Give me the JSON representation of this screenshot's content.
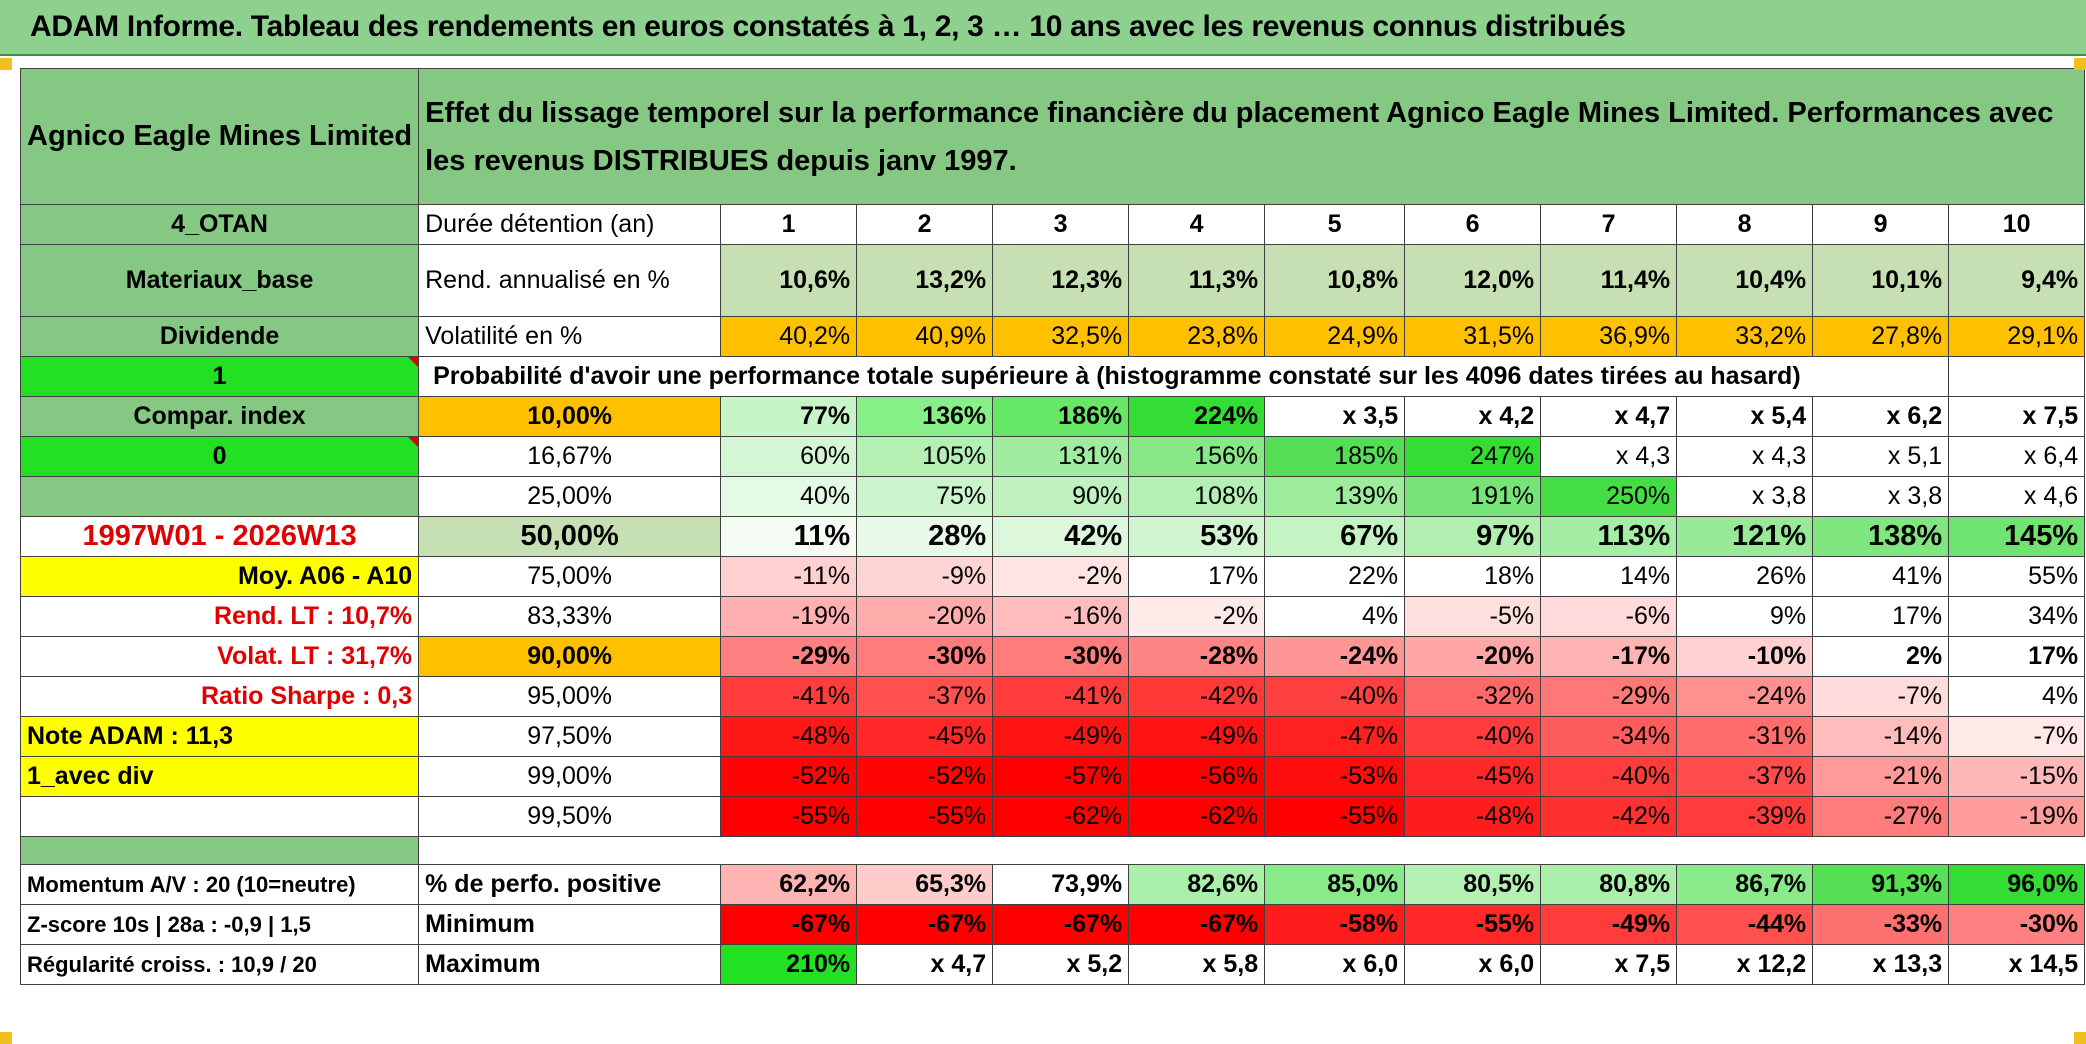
{
  "banner": "ADAM Informe. Tableau des rendements en euros constatés à 1, 2, 3 … 10 ans avec les revenus connus distribués",
  "header": {
    "instrument": "Agnico Eagle Mines Limited",
    "description": "Effet du lissage temporel sur la performance financière du placement Agnico Eagle Mines Limited. Performances avec les revenus DISTRIBUES depuis janv 1997."
  },
  "left": {
    "code": "4_OTAN",
    "sector": "Materiaux_base",
    "dividend": "Dividende",
    "one": "1",
    "compar": "Compar. index",
    "zero": "0",
    "period": "1997W01 - 2026W13",
    "moy": "Moy. A06 - A10",
    "rend_lt": "Rend. LT :    10,7%",
    "volat_lt": "Volat. LT :    31,7%",
    "sharpe": "Ratio Sharpe :    0,3",
    "note": "Note ADAM : 11,3",
    "avec_div": "1_avec div",
    "momentum": "Momentum A/V : 20 (10=neutre)",
    "zscore": "Z-score 10s | 28a : -0,9 | 1,5",
    "regularite": "Régularité croiss. : 10,9 / 20"
  },
  "labels": {
    "duree": "Durée détention (an)",
    "rend": "Rend. annualisé en %",
    "vol": "Volatilité en %",
    "prob": "Probabilité d'avoir une performance totale supérieure à (histogramme constaté sur les 4096 dates tirées au hasard)",
    "perf_pos": "% de perfo. positive",
    "minimum": "Minimum",
    "maximum": "Maximum"
  },
  "years": [
    "1",
    "2",
    "3",
    "4",
    "5",
    "6",
    "7",
    "8",
    "9",
    "10"
  ],
  "rend": [
    "10,6%",
    "13,2%",
    "12,3%",
    "11,3%",
    "10,8%",
    "12,0%",
    "11,4%",
    "10,4%",
    "10,1%",
    "9,4%"
  ],
  "vol": [
    "40,2%",
    "40,9%",
    "32,5%",
    "23,8%",
    "24,9%",
    "31,5%",
    "36,9%",
    "33,2%",
    "27,8%",
    "29,1%"
  ],
  "quantiles": [
    {
      "q": "10,00%",
      "vals": [
        "77%",
        "136%",
        "186%",
        "224%",
        "x 3,5",
        "x 4,2",
        "x 4,7",
        "x 5,4",
        "x 6,2",
        "x 7,5"
      ],
      "bold": true
    },
    {
      "q": "16,67%",
      "vals": [
        "60%",
        "105%",
        "131%",
        "156%",
        "185%",
        "247%",
        "x 4,3",
        "x 4,3",
        "x 5,1",
        "x 6,4"
      ]
    },
    {
      "q": "25,00%",
      "vals": [
        "40%",
        "75%",
        "90%",
        "108%",
        "139%",
        "191%",
        "250%",
        "x 3,8",
        "x 3,8",
        "x 4,6"
      ]
    },
    {
      "q": "50,00%",
      "vals": [
        "11%",
        "28%",
        "42%",
        "53%",
        "67%",
        "97%",
        "113%",
        "121%",
        "138%",
        "145%"
      ],
      "bold": true,
      "big": true
    },
    {
      "q": "75,00%",
      "vals": [
        "-11%",
        "-9%",
        "-2%",
        "17%",
        "22%",
        "18%",
        "14%",
        "26%",
        "41%",
        "55%"
      ]
    },
    {
      "q": "83,33%",
      "vals": [
        "-19%",
        "-20%",
        "-16%",
        "-2%",
        "4%",
        "-5%",
        "-6%",
        "9%",
        "17%",
        "34%"
      ]
    },
    {
      "q": "90,00%",
      "vals": [
        "-29%",
        "-30%",
        "-30%",
        "-28%",
        "-24%",
        "-20%",
        "-17%",
        "-10%",
        "2%",
        "17%"
      ],
      "bold": true
    },
    {
      "q": "95,00%",
      "vals": [
        "-41%",
        "-37%",
        "-41%",
        "-42%",
        "-40%",
        "-32%",
        "-29%",
        "-24%",
        "-7%",
        "4%"
      ]
    },
    {
      "q": "97,50%",
      "vals": [
        "-48%",
        "-45%",
        "-49%",
        "-49%",
        "-47%",
        "-40%",
        "-34%",
        "-31%",
        "-14%",
        "-7%"
      ]
    },
    {
      "q": "99,00%",
      "vals": [
        "-52%",
        "-52%",
        "-57%",
        "-56%",
        "-53%",
        "-45%",
        "-40%",
        "-37%",
        "-21%",
        "-15%"
      ]
    },
    {
      "q": "99,50%",
      "vals": [
        "-55%",
        "-55%",
        "-62%",
        "-62%",
        "-55%",
        "-48%",
        "-42%",
        "-39%",
        "-27%",
        "-19%"
      ]
    }
  ],
  "perf_pos": [
    "62,2%",
    "65,3%",
    "73,9%",
    "82,6%",
    "85,0%",
    "80,5%",
    "80,8%",
    "86,7%",
    "91,3%",
    "96,0%"
  ],
  "minimum": [
    "-67%",
    "-67%",
    "-67%",
    "-67%",
    "-58%",
    "-55%",
    "-49%",
    "-44%",
    "-33%",
    "-30%"
  ],
  "maximum": [
    "210%",
    "x 4,7",
    "x 5,2",
    "x 5,8",
    "x 6,0",
    "x 6,0",
    "x 7,5",
    "x 12,2",
    "x 13,3",
    "x 14,5"
  ],
  "colors": {
    "quantiles": [
      [
        "#c8f5c8",
        "#88f088",
        "#66e866",
        "#33dd33",
        "#ffffff",
        "#ffffff",
        "#ffffff",
        "#ffffff",
        "#ffffff",
        "#ffffff"
      ],
      [
        "#d4f6d4",
        "#b4f0b4",
        "#a0ec a0",
        "#88e888",
        "#55dd55",
        "#33dd33",
        "#ffffff",
        "#ffffff",
        "#ffffff",
        "#ffffff"
      ],
      [
        "#e4fae4",
        "#ccf4cc",
        "#c0f2c0",
        "#b4f0b4",
        "#9cec9c",
        "#77e477",
        "#44dd44",
        "#ffffff",
        "#ffffff",
        "#ffffff"
      ],
      [
        "#f4fcf4",
        "#e8f9e8",
        "#dcf7dc",
        "#d0f5d0",
        "#c4f3c4",
        "#b0efb0",
        "#a4eda4",
        "#98ea98",
        "#80e680",
        "#70e470"
      ],
      [
        "#ffd0d0",
        "#ffd4d4",
        "#ffe4e4",
        "#ffffff",
        "#ffffff",
        "#ffffff",
        "#ffffff",
        "#ffffff",
        "#ffffff",
        "#ffffff"
      ],
      [
        "#ffb0b0",
        "#ffacac",
        "#ffbcbc",
        "#ffeaea",
        "#ffffff",
        "#ffdede",
        "#ffdada",
        "#ffffff",
        "#ffffff",
        "#ffffff"
      ],
      [
        "#ff8080",
        "#ff7c7c",
        "#ff7c7c",
        "#ff8484",
        "#ff9696",
        "#ffa6a6",
        "#ffb4b4",
        "#ffd0d0",
        "#ffffff",
        "#ffffff"
      ],
      [
        "#ff3c3c",
        "#ff5050",
        "#ff3c3c",
        "#ff3838",
        "#ff4040",
        "#ff6868",
        "#ff7878",
        "#ff9090",
        "#ffdcdc",
        "#ffffff"
      ],
      [
        "#ff1818",
        "#ff2828",
        "#ff1414",
        "#ff1414",
        "#ff2020",
        "#ff3c3c",
        "#ff5c5c",
        "#ff6c6c",
        "#ffbcbc",
        "#ffe8e8"
      ],
      [
        "#ff0404",
        "#ff0404",
        "#ff0000",
        "#ff0000",
        "#ff0c0c",
        "#ff2828",
        "#ff3c3c",
        "#ff4c4c",
        "#ff9a9a",
        "#ffb8b8"
      ],
      [
        "#ff0000",
        "#ff0000",
        "#ff0000",
        "#ff0000",
        "#ff0000",
        "#ff1c1c",
        "#ff3030",
        "#ff3c3c",
        "#ff7c7c",
        "#ff9c9c"
      ]
    ],
    "rend": [
      "#c6e0b4",
      "#c6e0b4",
      "#c6e0b4",
      "#c6e0b4",
      "#c6e0b4",
      "#c6e0b4",
      "#c6e0b4",
      "#c6e0b4",
      "#c6e0b4",
      "#c6e0b4"
    ],
    "perf_pos": [
      "#ffb4b4",
      "#ffcccc",
      "#ffffff",
      "#aaf0aa",
      "#88ea88",
      "#b4f0b4",
      "#aaf0aa",
      "#88ea88",
      "#55e055",
      "#33dd33"
    ],
    "minimum": [
      "#ff0000",
      "#ff0000",
      "#ff0000",
      "#ff0000",
      "#ff1c1c",
      "#ff2828",
      "#ff3c3c",
      "#ff5050",
      "#ff7070",
      "#ff8080"
    ],
    "maximum": [
      "#22e022",
      "#ffffff",
      "#ffffff",
      "#ffffff",
      "#ffffff",
      "#ffffff",
      "#ffffff",
      "#ffffff",
      "#ffffff",
      "#ffffff"
    ]
  }
}
